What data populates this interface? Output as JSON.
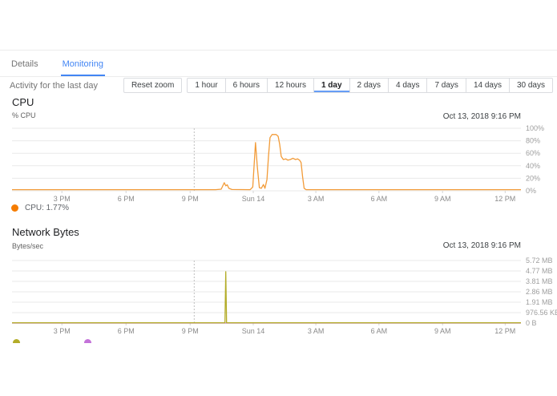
{
  "tabs": [
    {
      "label": "Details"
    },
    {
      "label": "Monitoring"
    }
  ],
  "activity_label": "Activity for the last day",
  "toolbar": {
    "reset_zoom_label": "Reset zoom",
    "ranges": [
      "1 hour",
      "6 hours",
      "12 hours",
      "1 day",
      "2 days",
      "4 days",
      "7 days",
      "14 days",
      "30 days"
    ],
    "selected_range": "1 day"
  },
  "colors": {
    "accent_blue": "#4285f4",
    "selected_underline": "#669df6",
    "cpu_orange": "#f29b38",
    "cpu_legend_dot": "#f57c00",
    "net_olive": "#b3ac28",
    "net_magenta": "#c473d9",
    "gridline": "#e9e9e9",
    "cursor_dash": "#c0c0c0"
  },
  "cpu_section": {
    "title": "CPU",
    "unit": "% CPU",
    "timestamp": "Oct 13, 2018 9:16 PM",
    "legend_label": "CPU: 1.77%"
  },
  "network_section": {
    "title": "Network Bytes",
    "unit": "Bytes/sec",
    "timestamp": "Oct 13, 2018 9:16 PM"
  },
  "chart_data": [
    {
      "type": "line",
      "title": "CPU",
      "ylabel": "% CPU",
      "timestamp": "Oct 13, 2018 9:16 PM",
      "ylim": [
        0,
        100
      ],
      "y_ticks": [
        "100%",
        "80%",
        "60%",
        "40%",
        "20%",
        "0%"
      ],
      "x_ticks": [
        {
          "label": "3 PM",
          "f": 0.098
        },
        {
          "label": "6 PM",
          "f": 0.224
        },
        {
          "label": "9 PM",
          "f": 0.35
        },
        {
          "label": "Sun 14",
          "f": 0.474
        },
        {
          "label": "3 AM",
          "f": 0.597
        },
        {
          "label": "6 AM",
          "f": 0.721
        },
        {
          "label": "9 AM",
          "f": 0.846
        },
        {
          "label": "12 PM",
          "f": 0.969
        }
      ],
      "cursor_f": 0.358,
      "grid": true,
      "legend_position": "bottom-left",
      "series": [
        {
          "name": "CPU",
          "color": "#f29b38",
          "points": [
            [
              0,
              1.77
            ],
            [
              0.4,
              1.77
            ],
            [
              0.411,
              2.5
            ],
            [
              0.417,
              13
            ],
            [
              0.42,
              8
            ],
            [
              0.423,
              9.5
            ],
            [
              0.426,
              4
            ],
            [
              0.432,
              2
            ],
            [
              0.468,
              1.77
            ],
            [
              0.473,
              6
            ],
            [
              0.4785,
              77
            ],
            [
              0.482,
              38
            ],
            [
              0.486,
              5
            ],
            [
              0.49,
              4
            ],
            [
              0.494,
              10
            ],
            [
              0.497,
              4
            ],
            [
              0.501,
              18
            ],
            [
              0.504,
              55
            ],
            [
              0.507,
              85
            ],
            [
              0.511,
              90
            ],
            [
              0.519,
              90
            ],
            [
              0.523,
              87
            ],
            [
              0.526,
              74
            ],
            [
              0.529,
              55
            ],
            [
              0.533,
              50
            ],
            [
              0.538,
              51
            ],
            [
              0.542,
              49
            ],
            [
              0.547,
              50
            ],
            [
              0.552,
              52
            ],
            [
              0.557,
              50
            ],
            [
              0.561,
              51
            ],
            [
              0.565,
              49
            ],
            [
              0.568,
              45
            ],
            [
              0.571,
              22
            ],
            [
              0.574,
              4
            ],
            [
              0.578,
              1.77
            ],
            [
              1,
              1.77
            ]
          ]
        }
      ],
      "legend": [
        {
          "label": "CPU: 1.77%",
          "color": "#f57c00"
        }
      ]
    },
    {
      "type": "line",
      "title": "Network Bytes",
      "ylabel": "Bytes/sec",
      "timestamp": "Oct 13, 2018 9:16 PM",
      "ylim": [
        0,
        5.722
      ],
      "y_unit": "MB",
      "y_ticks": [
        "5.72 MB",
        "4.77 MB",
        "3.81 MB",
        "2.86 MB",
        "1.91 MB",
        "976.56 KB",
        "0 B"
      ],
      "x_ticks": [
        {
          "label": "3 PM",
          "f": 0.098
        },
        {
          "label": "6 PM",
          "f": 0.224
        },
        {
          "label": "9 PM",
          "f": 0.35
        },
        {
          "label": "Sun 14",
          "f": 0.474
        },
        {
          "label": "3 AM",
          "f": 0.597
        },
        {
          "label": "6 AM",
          "f": 0.721
        },
        {
          "label": "9 AM",
          "f": 0.846
        },
        {
          "label": "12 PM",
          "f": 0.969
        }
      ],
      "cursor_f": 0.358,
      "grid": true,
      "legend_position": "bottom-left-clipped",
      "series": [
        {
          "name": "series-magenta",
          "color": "#c473d9",
          "points": [
            [
              0,
              0
            ],
            [
              1,
              0
            ]
          ]
        },
        {
          "name": "series-olive",
          "color": "#b3ac28",
          "points": [
            [
              0,
              0.02
            ],
            [
              0.4185,
              0.02
            ],
            [
              0.42,
              4.7
            ],
            [
              0.4215,
              0.02
            ],
            [
              1,
              0.02
            ]
          ]
        }
      ],
      "legend": [
        {
          "label": "",
          "color": "#b3ac28"
        },
        {
          "label": "",
          "color": "#c473d9"
        }
      ]
    }
  ]
}
